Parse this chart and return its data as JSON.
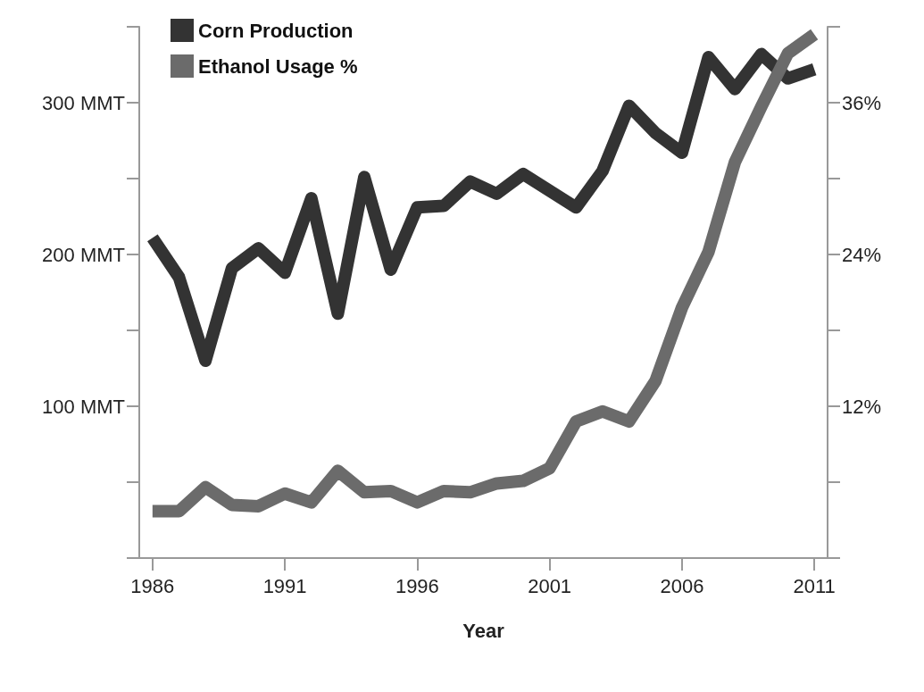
{
  "chart_data": {
    "type": "line",
    "xlabel": "Year",
    "x": [
      1986,
      1987,
      1988,
      1989,
      1990,
      1991,
      1992,
      1993,
      1994,
      1995,
      1996,
      1997,
      1998,
      1999,
      2000,
      2001,
      2002,
      2003,
      2004,
      2005,
      2006,
      2007,
      2008,
      2009,
      2010,
      2011
    ],
    "series": [
      {
        "name": "Corn Production",
        "color": "#333333",
        "values": [
          211,
          185,
          130,
          191,
          204,
          188,
          237,
          161,
          251,
          190,
          231,
          232,
          248,
          240,
          253,
          242,
          231,
          255,
          298,
          280,
          267,
          330,
          309,
          332,
          316,
          322
        ]
      },
      {
        "name": "Ethanol Usage %",
        "color": "#6b6b6b",
        "axis": "y2",
        "values": [
          3.7,
          3.7,
          5.6,
          4.2,
          4.1,
          5.1,
          4.4,
          6.9,
          5.2,
          5.3,
          4.4,
          5.3,
          5.2,
          5.9,
          6.1,
          7.1,
          10.8,
          11.6,
          10.8,
          14.0,
          19.8,
          24.2,
          31.3,
          35.7,
          39.9,
          41.4
        ]
      }
    ],
    "xlim": [
      1985.5,
      2011.5
    ],
    "xticks": [
      1986,
      1991,
      1996,
      2001,
      2006,
      2011
    ],
    "ylim": [
      0,
      350
    ],
    "yticks": [
      {
        "value": 0,
        "label": null
      },
      {
        "value": 50,
        "label": null
      },
      {
        "value": 100,
        "label": "100 MMT"
      },
      {
        "value": 150,
        "label": null
      },
      {
        "value": 200,
        "label": "200 MMT"
      },
      {
        "value": 250,
        "label": null
      },
      {
        "value": 300,
        "label": "300 MMT"
      },
      {
        "value": 350,
        "label": null
      }
    ],
    "y2lim": [
      0,
      42
    ],
    "y2ticks": [
      {
        "value": 0,
        "label": null
      },
      {
        "value": 6,
        "label": null
      },
      {
        "value": 12,
        "label": "12%"
      },
      {
        "value": 18,
        "label": null
      },
      {
        "value": 24,
        "label": "24%"
      },
      {
        "value": 30,
        "label": null
      },
      {
        "value": 36,
        "label": "36%"
      },
      {
        "value": 42,
        "label": null
      }
    ],
    "grid": false,
    "legend": "top left",
    "marker": "none",
    "line_style": "solid"
  }
}
